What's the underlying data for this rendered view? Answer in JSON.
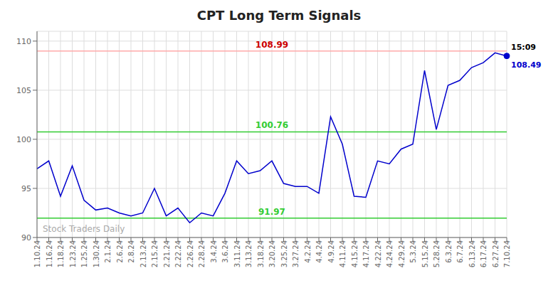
{
  "chart_data": {
    "type": "line",
    "title": "CPT Long Term Signals",
    "categories": [
      "1.10.24",
      "1.16.24",
      "1.18.24",
      "1.23.24",
      "1.25.24",
      "1.30.24",
      "2.1.24",
      "2.6.24",
      "2.8.24",
      "2.13.24",
      "2.15.24",
      "2.21.24",
      "2.22.24",
      "2.26.24",
      "2.28.24",
      "3.4.24",
      "3.6.24",
      "3.11.24",
      "3.13.24",
      "3.18.24",
      "3.20.24",
      "3.25.24",
      "3.27.24",
      "4.2.24",
      "4.4.24",
      "4.9.24",
      "4.11.24",
      "4.15.24",
      "4.17.24",
      "4.22.24",
      "4.24.24",
      "4.29.24",
      "5.3.24",
      "5.15.24",
      "5.28.24",
      "6.3.24",
      "6.7.24",
      "6.13.24",
      "6.17.24",
      "6.27.24",
      "7.10.24"
    ],
    "values": [
      97.0,
      97.8,
      94.2,
      97.3,
      93.8,
      92.8,
      93.0,
      92.5,
      92.2,
      92.5,
      95.0,
      92.2,
      93.0,
      91.5,
      92.5,
      92.2,
      94.5,
      97.8,
      96.5,
      96.8,
      97.8,
      95.5,
      95.2,
      95.2,
      94.5,
      102.3,
      99.5,
      94.2,
      94.1,
      97.8,
      97.5,
      99.0,
      99.5,
      107.0,
      101.0,
      105.5,
      106.0,
      107.3,
      107.8,
      108.8,
      108.49
    ],
    "color": "#0000cc",
    "ylim": [
      90,
      111
    ],
    "yticks": [
      90,
      95,
      100,
      105,
      110
    ],
    "grid": true,
    "reference_lines": [
      {
        "y": 108.99,
        "label": "108.99",
        "color": "#ffaaaa",
        "label_color": "#cc0000"
      },
      {
        "y": 100.76,
        "label": "100.76",
        "color": "#33cc33",
        "label_color": "#33cc33"
      },
      {
        "y": 91.97,
        "label": "91.97",
        "color": "#33cc33",
        "label_color": "#33cc33"
      }
    ],
    "last_point": {
      "time_label": "15:09",
      "price_label": "108.49",
      "color": "#0000cc"
    },
    "watermark": "Stock Traders Daily"
  }
}
